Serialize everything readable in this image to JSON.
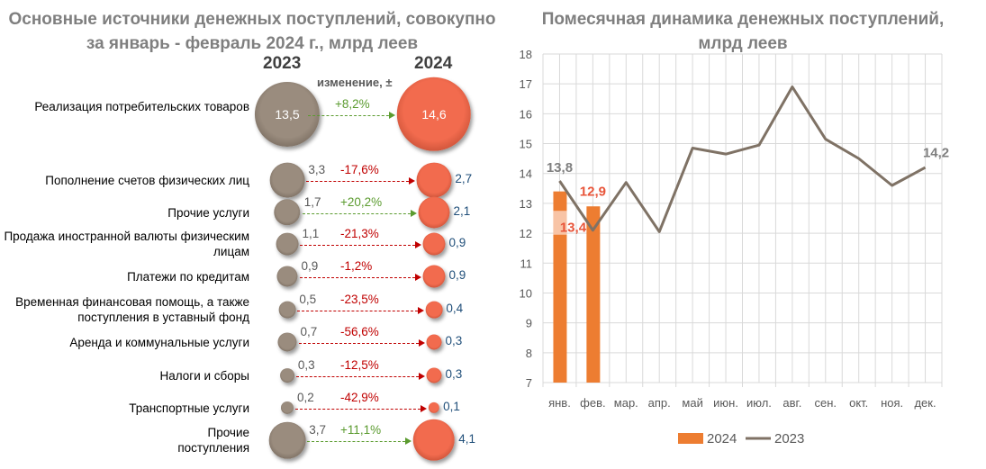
{
  "left": {
    "title_line1": "Основные источники денежных поступлений, совокупно",
    "title_line2": "за январь - февраль 2024 г., млрд  леев",
    "year_a": "2023",
    "year_b": "2024",
    "change_label": "изменение, ±",
    "rows": [
      {
        "label": "Реализация потребительских товаров",
        "v2023": "13,5",
        "v2024": "14,6",
        "change": "+8,2%",
        "n23": 13.5,
        "n24": 14.6
      },
      {
        "label": "Пополнение счетов физических лиц",
        "v2023": "3,3",
        "v2024": "2,7",
        "change": "-17,6%",
        "n23": 3.3,
        "n24": 2.7
      },
      {
        "label": "Прочие услуги",
        "v2023": "1,7",
        "v2024": "2,1",
        "change": "+20,2%",
        "n23": 1.7,
        "n24": 2.1
      },
      {
        "label": "Продажа иностранной валюты физическим лицам",
        "v2023": "1,1",
        "v2024": "0,9",
        "change": "-21,3%",
        "n23": 1.1,
        "n24": 0.9
      },
      {
        "label": "Платежи по кредитам",
        "v2023": "0,9",
        "v2024": "0,9",
        "change": "-1,2%",
        "n23": 0.9,
        "n24": 0.9
      },
      {
        "label": "Временная финансовая помощь, а также поступления в уставный фонд",
        "v2023": "0,5",
        "v2024": "0,4",
        "change": "-23,5%",
        "n23": 0.5,
        "n24": 0.4
      },
      {
        "label": "Аренда и коммунальные услуги",
        "v2023": "0,7",
        "v2024": "0,3",
        "change": "-56,6%",
        "n23": 0.7,
        "n24": 0.3
      },
      {
        "label": "Налоги и сборы",
        "v2023": "0,3",
        "v2024": "0,3",
        "change": "-12,5%",
        "n23": 0.3,
        "n24": 0.3
      },
      {
        "label": "Транспортные услуги",
        "v2023": "0,2",
        "v2024": "0,1",
        "change": "-42,9%",
        "n23": 0.2,
        "n24": 0.1
      },
      {
        "label": "Прочие поступления",
        "v2023": "3,7",
        "v2024": "4,1",
        "change": "+11,1%",
        "n23": 3.7,
        "n24": 4.1
      }
    ],
    "colors": {
      "pos": "#5b9b2f",
      "neg": "#c00000"
    }
  },
  "chart_data": {
    "type": "bar+line",
    "title": "Помесячная динамика денежных поступлений, млрд леев",
    "categories": [
      "янв.",
      "фев.",
      "мар.",
      "апр.",
      "май",
      "июн.",
      "июл.",
      "авг.",
      "сен.",
      "окт.",
      "ноя.",
      "дек."
    ],
    "ylim": [
      7,
      18
    ],
    "yticks": [
      "7",
      "8",
      "9",
      "10",
      "11",
      "12",
      "13",
      "14",
      "15",
      "16",
      "17",
      "18"
    ],
    "grid": true,
    "legend": "bottom",
    "series": [
      {
        "name": "2024",
        "type": "bar",
        "color": "#ed7d31",
        "values": [
          13.4,
          12.9,
          null,
          null,
          null,
          null,
          null,
          null,
          null,
          null,
          null,
          null
        ],
        "labels": [
          "13,4",
          "12,9"
        ]
      },
      {
        "name": "2023",
        "type": "line",
        "color": "#7f7265",
        "values": [
          13.75,
          12.1,
          13.7,
          12.05,
          14.85,
          14.65,
          14.95,
          16.9,
          15.15,
          14.5,
          13.6,
          14.2
        ],
        "labels": [
          "13,8",
          "14,2"
        ]
      }
    ]
  }
}
